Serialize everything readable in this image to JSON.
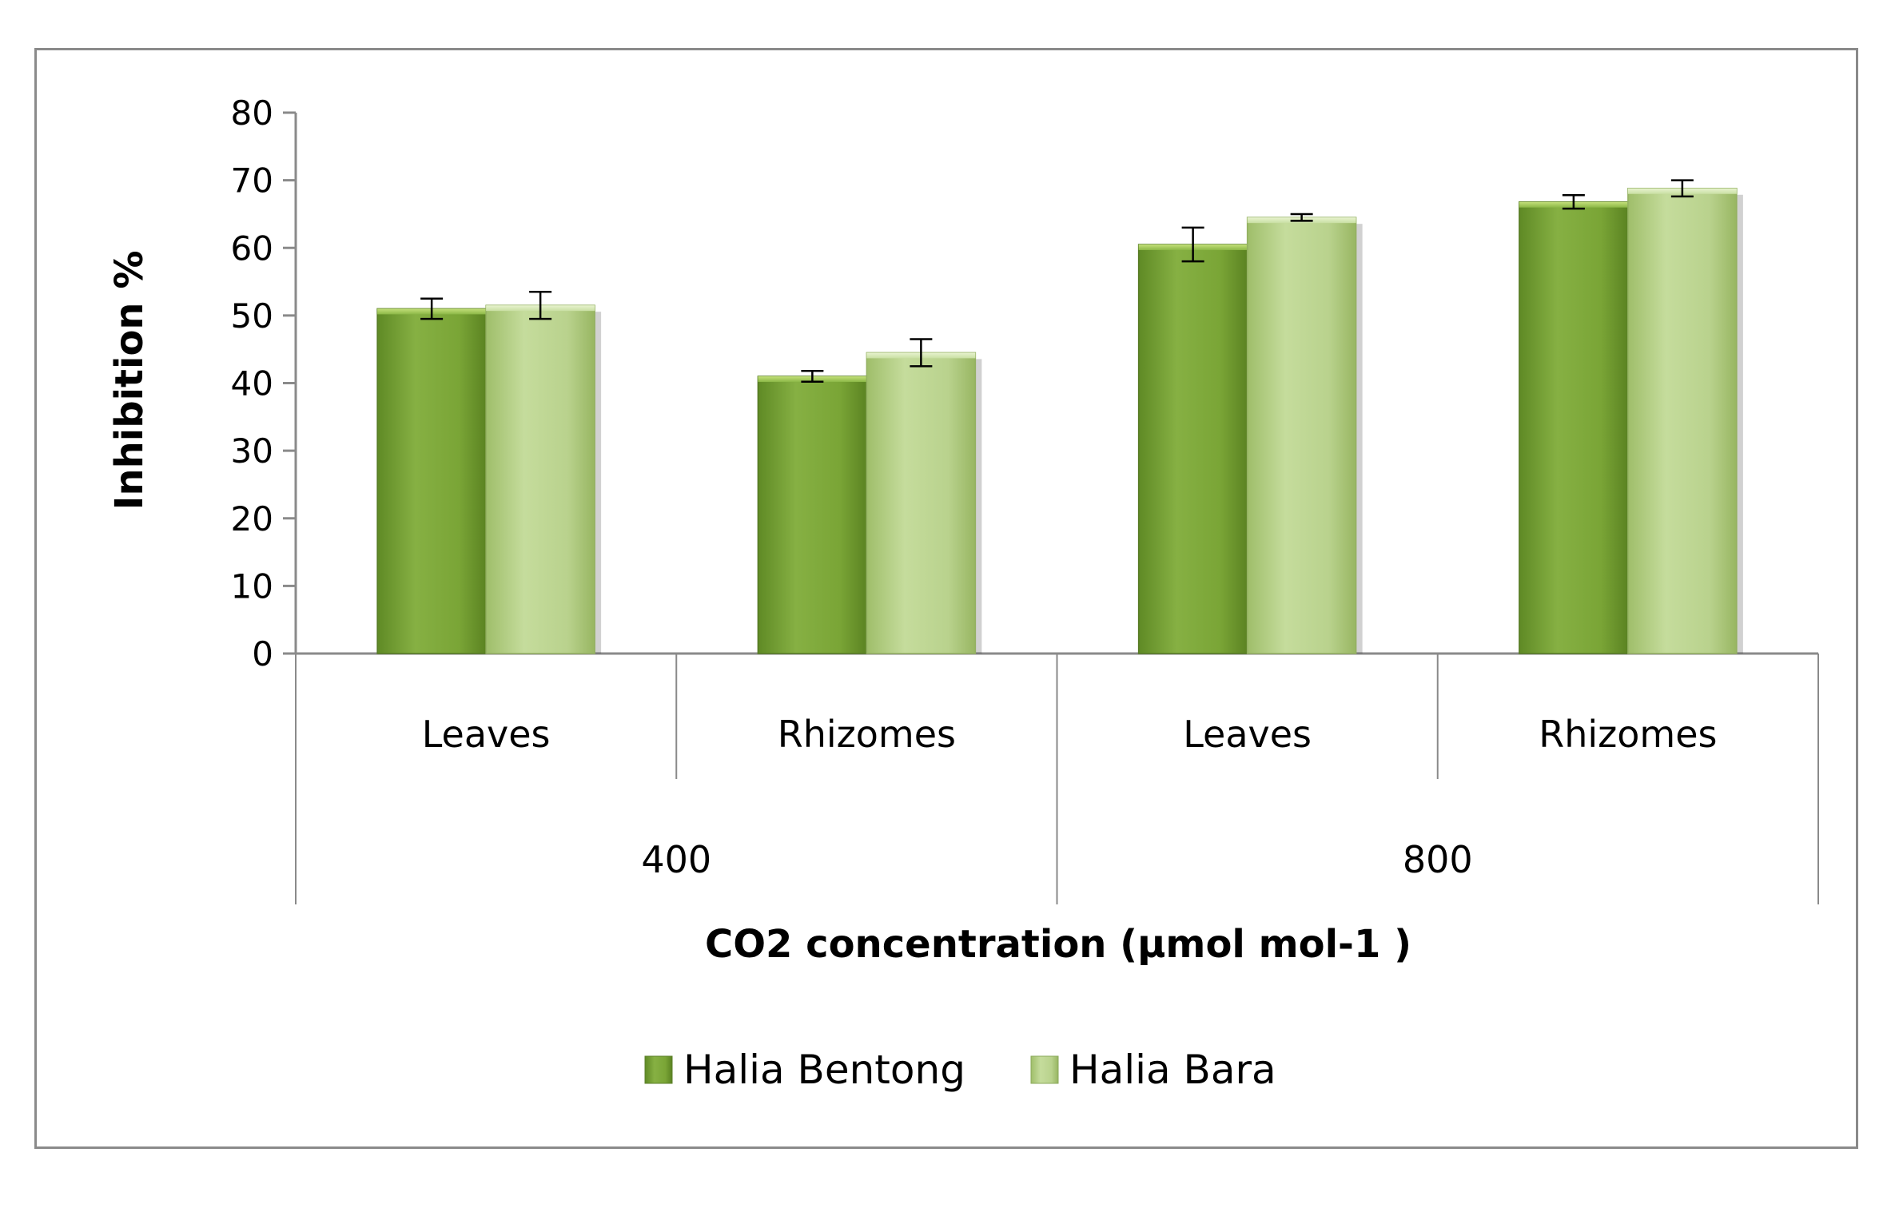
{
  "chart_data": {
    "type": "bar",
    "title": "",
    "xlabel": "CO2 concentration (µmol mol-1 )",
    "ylabel": "Inhibition %",
    "ylim": [
      0,
      80
    ],
    "yticks": [
      0,
      10,
      20,
      30,
      40,
      50,
      60,
      70,
      80
    ],
    "categories": [
      "Leaves",
      "Rhizomes",
      "Leaves",
      "Rhizomes"
    ],
    "groups": [
      {
        "label": "400",
        "categories": [
          "Leaves",
          "Rhizomes"
        ]
      },
      {
        "label": "800",
        "categories": [
          "Leaves",
          "Rhizomes"
        ]
      }
    ],
    "series": [
      {
        "name": "Halia Bentong",
        "values": [
          51,
          41,
          60.5,
          66.8
        ],
        "errors": [
          1.5,
          0.8,
          2.5,
          1.0
        ],
        "color": "#7fa83a"
      },
      {
        "name": "Halia Bara",
        "values": [
          51.5,
          44.5,
          64.5,
          68.8
        ],
        "errors": [
          2.0,
          2.0,
          0.5,
          1.2
        ],
        "color": "#b5cf86"
      }
    ],
    "legend_position": "bottom",
    "grid": false
  }
}
